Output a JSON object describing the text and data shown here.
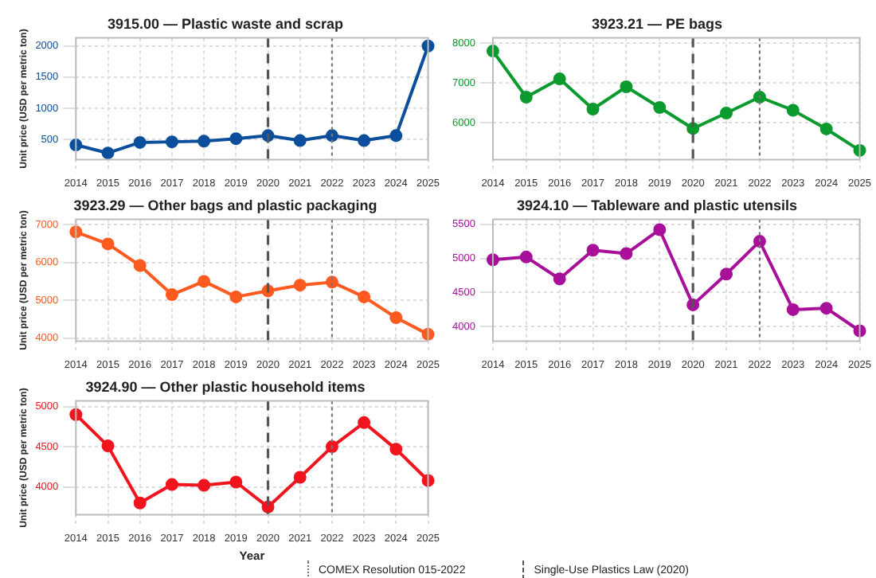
{
  "chart_data": [
    {
      "type": "line",
      "title": "3915.00 — Plastic waste and scrap",
      "ylabel": "Unit price (USD per metric ton)",
      "categories": [
        "2014",
        "2015",
        "2016",
        "2017",
        "2018",
        "2019",
        "2020",
        "2021",
        "2022",
        "2023",
        "2024",
        "2025"
      ],
      "series": [
        {
          "color": "#0b4f9c",
          "values": [
            410,
            280,
            450,
            460,
            470,
            510,
            560,
            480,
            560,
            480,
            560,
            2000
          ]
        }
      ],
      "ylim": [
        175,
        2130
      ],
      "yticks": [
        500,
        1000,
        1500,
        2000
      ],
      "grid": true,
      "marker": "circle",
      "legend": false,
      "ref_lines": [
        {
          "axis": "x",
          "value": "2020",
          "line_style": "dashed",
          "color": "#555555"
        },
        {
          "axis": "x",
          "value": "2022",
          "line_style": "dotted",
          "color": "#777777"
        }
      ]
    },
    {
      "type": "line",
      "title": "3923.21 — PE bags",
      "categories": [
        "2014",
        "2015",
        "2016",
        "2017",
        "2018",
        "2019",
        "2020",
        "2021",
        "2022",
        "2023",
        "2024",
        "2025"
      ],
      "series": [
        {
          "color": "#0a9a2e",
          "values": [
            7800,
            6640,
            7100,
            6340,
            6900,
            6380,
            5850,
            6240,
            6640,
            6310,
            5840,
            5300
          ]
        }
      ],
      "ylim": [
        5070,
        8130
      ],
      "yticks": [
        6000,
        7000,
        8000
      ],
      "grid": true,
      "marker": "circle",
      "legend": false,
      "ref_lines": [
        {
          "axis": "x",
          "value": "2020",
          "line_style": "dashed",
          "color": "#555555"
        },
        {
          "axis": "x",
          "value": "2022",
          "line_style": "dotted",
          "color": "#777777"
        }
      ]
    },
    {
      "type": "line",
      "title": "3923.29 — Other bags and plastic packaging",
      "ylabel": "Unit price (USD per metric ton)",
      "categories": [
        "2014",
        "2015",
        "2016",
        "2017",
        "2018",
        "2019",
        "2020",
        "2021",
        "2022",
        "2023",
        "2024",
        "2025"
      ],
      "series": [
        {
          "color": "#ff5a1f",
          "values": [
            6810,
            6490,
            5920,
            5150,
            5500,
            5090,
            5250,
            5400,
            5480,
            5090,
            4540,
            4100
          ]
        }
      ],
      "ylim": [
        3920,
        7140
      ],
      "yticks": [
        4000,
        5000,
        6000,
        7000
      ],
      "grid": true,
      "marker": "circle",
      "legend": false,
      "ref_lines": [
        {
          "axis": "x",
          "value": "2020",
          "line_style": "dashed",
          "color": "#555555"
        },
        {
          "axis": "x",
          "value": "2022",
          "line_style": "dotted",
          "color": "#777777"
        }
      ]
    },
    {
      "type": "line",
      "title": "3924.10 — Tableware and plastic utensils",
      "categories": [
        "2014",
        "2015",
        "2016",
        "2017",
        "2018",
        "2019",
        "2020",
        "2021",
        "2022",
        "2023",
        "2024",
        "2025"
      ],
      "series": [
        {
          "color": "#a8109a",
          "values": [
            4980,
            5020,
            4700,
            5120,
            5070,
            5420,
            4320,
            4770,
            5250,
            4250,
            4270,
            3940
          ]
        }
      ],
      "ylim": [
        3790,
        5570
      ],
      "yticks": [
        4000,
        4500,
        5000,
        5500
      ],
      "grid": true,
      "marker": "circle",
      "legend": false,
      "ref_lines": [
        {
          "axis": "x",
          "value": "2020",
          "line_style": "dashed",
          "color": "#555555"
        },
        {
          "axis": "x",
          "value": "2022",
          "line_style": "dotted",
          "color": "#777777"
        }
      ]
    },
    {
      "type": "line",
      "title": "3924.90 — Other plastic household items",
      "xlabel": "Year",
      "ylabel": "Unit price (USD per metric ton)",
      "categories": [
        "2014",
        "2015",
        "2016",
        "2017",
        "2018",
        "2019",
        "2020",
        "2021",
        "2022",
        "2023",
        "2024",
        "2025"
      ],
      "series": [
        {
          "color": "#f0141e",
          "values": [
            4900,
            4510,
            3800,
            4030,
            4020,
            4060,
            3750,
            4120,
            4500,
            4800,
            4470,
            4080
          ]
        }
      ],
      "ylim": [
        3655,
        5070
      ],
      "yticks": [
        4000,
        4500,
        5000
      ],
      "grid": true,
      "marker": "circle",
      "legend": "bottom",
      "ref_lines": [
        {
          "axis": "x",
          "value": "2020",
          "line_style": "dashed",
          "color": "#555555",
          "label": "Single-Use Plastics Law (2020)"
        },
        {
          "axis": "x",
          "value": "2022",
          "line_style": "dotted",
          "color": "#777777",
          "label": "COMEX Resolution 015-2022"
        }
      ]
    }
  ]
}
